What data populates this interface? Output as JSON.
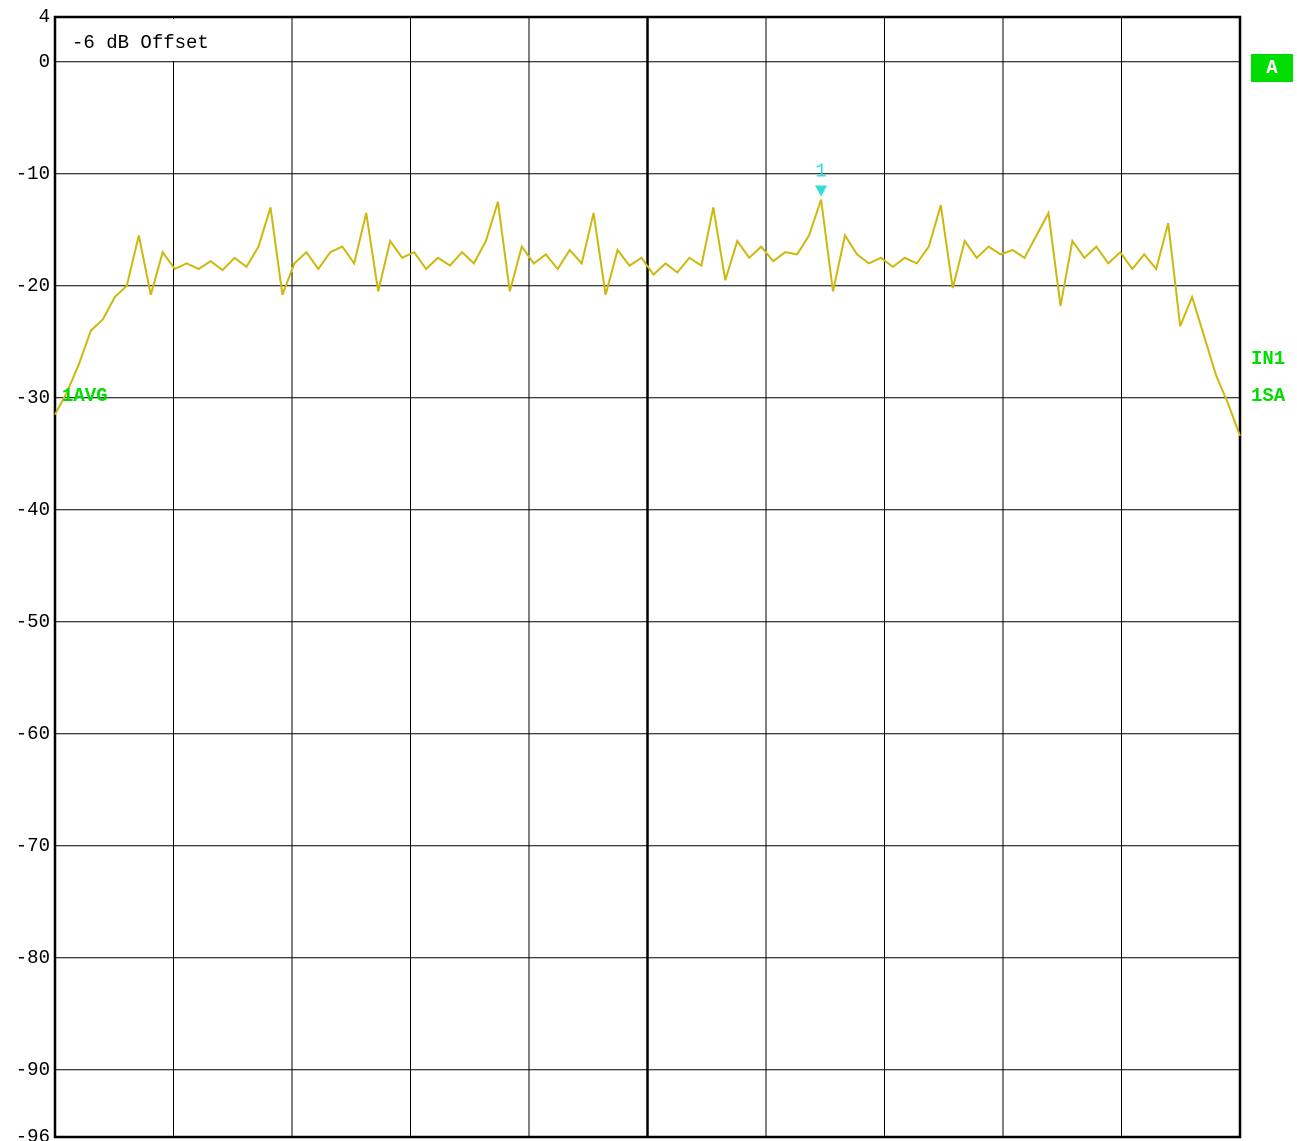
{
  "chart_data": {
    "type": "line",
    "annotations": {
      "offset": "-6 dB Offset",
      "trace": "1AVG",
      "screen": "A",
      "input": "IN1",
      "sweep": "1SA"
    },
    "marker": {
      "label": "1",
      "value": -12.3,
      "color": "#33dddd"
    },
    "ylim": [
      -96,
      4
    ],
    "yticks": [
      4,
      0,
      -10,
      -20,
      -30,
      -40,
      -50,
      -60,
      -70,
      -80,
      -90,
      -96
    ],
    "grid": true,
    "series": [
      {
        "color": "#cdb80c",
        "values": [
          -31.5,
          -29.5,
          -27,
          -24,
          -23,
          -21,
          -20,
          -15.5,
          -20.8,
          -17,
          -18.5,
          -18,
          -18.5,
          -17.8,
          -18.6,
          -17.5,
          -18.3,
          -16.5,
          -13,
          -20.8,
          -18,
          -17,
          -18.5,
          -17,
          -16.5,
          -18,
          -13.5,
          -20.5,
          -16,
          -17.5,
          -17,
          -18.5,
          -17.5,
          -18.2,
          -17,
          -18,
          -16,
          -12.5,
          -20.5,
          -16.5,
          -18,
          -17.2,
          -18.5,
          -16.8,
          -18,
          -13.5,
          -20.8,
          -16.8,
          -18.2,
          -17.5,
          -19,
          -18,
          -18.8,
          -17.5,
          -18.2,
          -13,
          -19.5,
          -16,
          -17.5,
          -16.5,
          -17.8,
          -17,
          -17.2,
          -15.5,
          -12.3,
          -20.5,
          -15.5,
          -17.2,
          -18,
          -17.5,
          -18.3,
          -17.5,
          -18,
          -16.5,
          -12.8,
          -20.2,
          -16,
          -17.5,
          -16.5,
          -17.2,
          -16.8,
          -17.5,
          -15.5,
          -13.5,
          -21.8,
          -16,
          -17.5,
          -16.5,
          -18,
          -17,
          -18.5,
          -17.2,
          -18.5,
          -14.4,
          -23.6,
          -21,
          -24.5,
          -28,
          -30.5,
          -33.4
        ]
      }
    ]
  }
}
